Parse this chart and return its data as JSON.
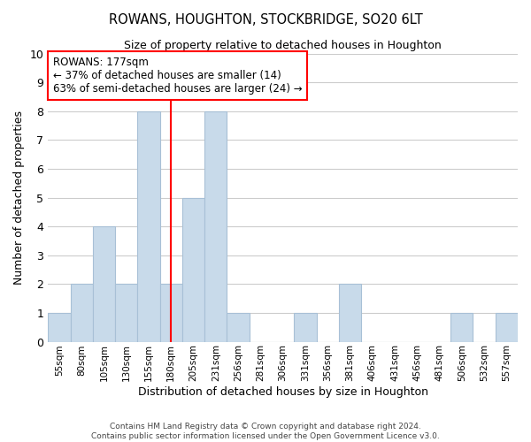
{
  "title": "ROWANS, HOUGHTON, STOCKBRIDGE, SO20 6LT",
  "subtitle": "Size of property relative to detached houses in Houghton",
  "xlabel": "Distribution of detached houses by size in Houghton",
  "ylabel": "Number of detached properties",
  "bar_color": "#c8daea",
  "bar_edge_color": "#a8c0d6",
  "bins": [
    "55sqm",
    "80sqm",
    "105sqm",
    "130sqm",
    "155sqm",
    "180sqm",
    "205sqm",
    "231sqm",
    "256sqm",
    "281sqm",
    "306sqm",
    "331sqm",
    "356sqm",
    "381sqm",
    "406sqm",
    "431sqm",
    "456sqm",
    "481sqm",
    "506sqm",
    "532sqm",
    "557sqm"
  ],
  "counts": [
    1,
    2,
    4,
    2,
    8,
    2,
    5,
    8,
    1,
    0,
    0,
    1,
    0,
    2,
    0,
    0,
    0,
    0,
    1,
    0,
    1
  ],
  "ylim": [
    0,
    10
  ],
  "yticks": [
    0,
    1,
    2,
    3,
    4,
    5,
    6,
    7,
    8,
    9,
    10
  ],
  "redline_bin_index": 5,
  "annotation_title": "ROWANS: 177sqm",
  "annotation_line1": "← 37% of detached houses are smaller (14)",
  "annotation_line2": "63% of semi-detached houses are larger (24) →",
  "footer1": "Contains HM Land Registry data © Crown copyright and database right 2024.",
  "footer2": "Contains public sector information licensed under the Open Government Licence v3.0.",
  "background_color": "#ffffff",
  "grid_color": "#cccccc"
}
